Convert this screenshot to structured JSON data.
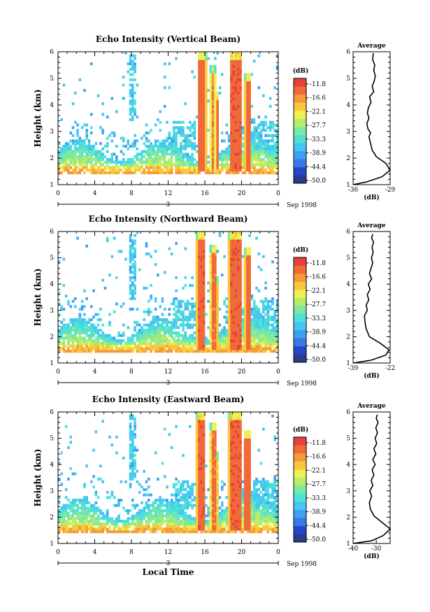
{
  "chart_data": [
    {
      "type": "heatmap",
      "title": "Echo Intensity (Vertical Beam)",
      "ylabel": "Height (km)",
      "ylim": [
        1,
        6
      ],
      "yticks": [
        "1",
        "2",
        "3",
        "4",
        "5",
        "6"
      ],
      "xlim": [
        0,
        24
      ],
      "xticks": [
        "0",
        "4",
        "8",
        "12",
        "16",
        "20",
        "0"
      ],
      "day_label": "3",
      "date_label": "Sep 1998",
      "colorbar": {
        "title": "(dB)",
        "ticks": [
          "-11.8",
          "-16.6",
          "-22.1",
          "-27.7",
          "-33.3",
          "-38.9",
          "-44.4",
          "-50.0"
        ]
      },
      "profile": {
        "title": "Average",
        "xlabel": "(dB)",
        "xlim": [
          -36,
          -29
        ],
        "xticks": [
          "-36",
          "-29"
        ],
        "ylim": [
          1,
          6
        ],
        "x": [
          -36.0,
          -33.5,
          -30.5,
          -29.0,
          -29.8,
          -31.6,
          -32.4,
          -32.7,
          -33.0,
          -32.7,
          -33.2,
          -33.4,
          -33.0,
          -33.3,
          -33.1,
          -32.6,
          -32.9,
          -32.1,
          -32.4,
          -32.0,
          -31.8,
          -32.1,
          -31.9,
          -32.3,
          -32.2
        ],
        "y": [
          1.0,
          1.1,
          1.3,
          1.55,
          1.8,
          2.05,
          2.3,
          2.55,
          2.8,
          2.95,
          3.1,
          3.3,
          3.5,
          3.7,
          3.9,
          4.1,
          4.3,
          4.5,
          4.7,
          4.9,
          5.1,
          5.3,
          5.5,
          5.7,
          5.95
        ]
      },
      "events": [
        {
          "from": 15.2,
          "to": 16.2,
          "bottom": 1.5,
          "top": 6.0,
          "db": -12.5
        },
        {
          "from": 16.6,
          "to": 17.2,
          "bottom": 1.5,
          "top": 5.5,
          "db": -15.0
        },
        {
          "from": 17.2,
          "to": 17.5,
          "bottom": 1.6,
          "top": 4.5,
          "db": -13.0
        },
        {
          "from": 18.7,
          "to": 20.0,
          "bottom": 1.5,
          "top": 6.0,
          "db": -12.0
        },
        {
          "from": 20.3,
          "to": 21.1,
          "bottom": 1.5,
          "top": 5.2,
          "db": -12.5
        }
      ]
    },
    {
      "type": "heatmap",
      "title": "Echo Intensity (Northward Beam)",
      "ylabel": "Height (km)",
      "ylim": [
        1,
        6
      ],
      "yticks": [
        "1",
        "2",
        "3",
        "4",
        "5",
        "6"
      ],
      "xlim": [
        0,
        24
      ],
      "xticks": [
        "0",
        "4",
        "8",
        "12",
        "16",
        "20",
        "0"
      ],
      "day_label": "3",
      "date_label": "Sep 1998",
      "colorbar": {
        "title": "(dB)",
        "ticks": [
          "-11.8",
          "-16.6",
          "-22.1",
          "-27.7",
          "-33.3",
          "-38.9",
          "-44.4",
          "-50.0"
        ]
      },
      "profile": {
        "title": "Average",
        "xlabel": "(dB)",
        "xlim": [
          -39,
          -22
        ],
        "xticks": [
          "-39",
          "-22"
        ],
        "ylim": [
          1,
          6
        ],
        "x": [
          -39.0,
          -31.0,
          -24.0,
          -22.5,
          -26.5,
          -31.5,
          -33.0,
          -33.5,
          -33.8,
          -32.5,
          -33.0,
          -31.8,
          -32.5,
          -31.2,
          -32.0,
          -30.5,
          -31.5,
          -30.8,
          -30.0,
          -30.6,
          -29.8,
          -30.3,
          -29.6,
          -30.5,
          -30.0
        ],
        "y": [
          1.0,
          1.1,
          1.3,
          1.5,
          1.75,
          2.0,
          2.3,
          2.55,
          2.8,
          3.0,
          3.2,
          3.4,
          3.6,
          3.8,
          4.0,
          4.2,
          4.4,
          4.6,
          4.8,
          5.0,
          5.2,
          5.4,
          5.6,
          5.75,
          5.9
        ]
      },
      "events": [
        {
          "from": 15.1,
          "to": 16.1,
          "bottom": 1.5,
          "top": 6.0,
          "db": -12.0
        },
        {
          "from": 16.6,
          "to": 17.3,
          "bottom": 1.5,
          "top": 5.5,
          "db": -14.0
        },
        {
          "from": 17.3,
          "to": 17.6,
          "bottom": 1.6,
          "top": 4.3,
          "db": -12.5
        },
        {
          "from": 18.6,
          "to": 20.0,
          "bottom": 1.5,
          "top": 6.0,
          "db": -12.0
        },
        {
          "from": 20.3,
          "to": 21.0,
          "bottom": 1.5,
          "top": 5.4,
          "db": -12.5
        }
      ]
    },
    {
      "type": "heatmap",
      "title": "Echo Intensity (Eastward Beam)",
      "ylabel": "Height (km)",
      "xlabel": "Local Time",
      "ylim": [
        1,
        6
      ],
      "yticks": [
        "1",
        "2",
        "3",
        "4",
        "5",
        "6"
      ],
      "xlim": [
        0,
        24
      ],
      "xticks": [
        "0",
        "4",
        "8",
        "12",
        "16",
        "20",
        "0"
      ],
      "day_label": "3",
      "date_label": "Sep 1998",
      "colorbar": {
        "title": "(dB)",
        "ticks": [
          "-11.8",
          "-16.6",
          "-22.1",
          "-27.7",
          "-33.3",
          "-38.9",
          "-44.4",
          "-50.0"
        ]
      },
      "profile": {
        "title": "Average",
        "xlabel": "(dB)",
        "xlim": [
          -40,
          -24
        ],
        "xticks": [
          "-40",
          "-30"
        ],
        "ylim": [
          1,
          6
        ],
        "x": [
          -40.0,
          -32.0,
          -27.0,
          -24.0,
          -27.5,
          -31.0,
          -32.5,
          -33.0,
          -32.0,
          -32.8,
          -31.5,
          -32.2,
          -31.0,
          -31.8,
          -30.5,
          -31.5,
          -30.2,
          -31.0,
          -29.8,
          -30.5,
          -29.5,
          -30.2,
          -29.2,
          -30.0,
          -29.6
        ],
        "y": [
          1.0,
          1.1,
          1.3,
          1.55,
          1.8,
          2.05,
          2.3,
          2.55,
          2.8,
          3.0,
          3.2,
          3.4,
          3.6,
          3.8,
          4.0,
          4.2,
          4.4,
          4.6,
          4.8,
          5.0,
          5.2,
          5.4,
          5.6,
          5.75,
          5.9
        ]
      },
      "events": [
        {
          "from": 15.1,
          "to": 16.1,
          "bottom": 1.5,
          "top": 6.0,
          "db": -12.0
        },
        {
          "from": 16.6,
          "to": 17.3,
          "bottom": 1.5,
          "top": 5.6,
          "db": -14.0
        },
        {
          "from": 17.3,
          "to": 17.6,
          "bottom": 1.6,
          "top": 4.5,
          "db": -13.0
        },
        {
          "from": 18.6,
          "to": 20.0,
          "bottom": 1.5,
          "top": 6.0,
          "db": -12.0
        },
        {
          "from": 20.2,
          "to": 21.0,
          "bottom": 1.5,
          "top": 5.3,
          "db": -12.5
        }
      ]
    }
  ],
  "colors": {
    "scale": [
      "#2b3a8c",
      "#2446c8",
      "#3a78e6",
      "#3ea0f0",
      "#46c6f2",
      "#4fe0d8",
      "#7ae9a4",
      "#b8ec6a",
      "#eef053",
      "#f7c83c",
      "#f49a3a",
      "#ef6a38",
      "#e8403c"
    ]
  }
}
